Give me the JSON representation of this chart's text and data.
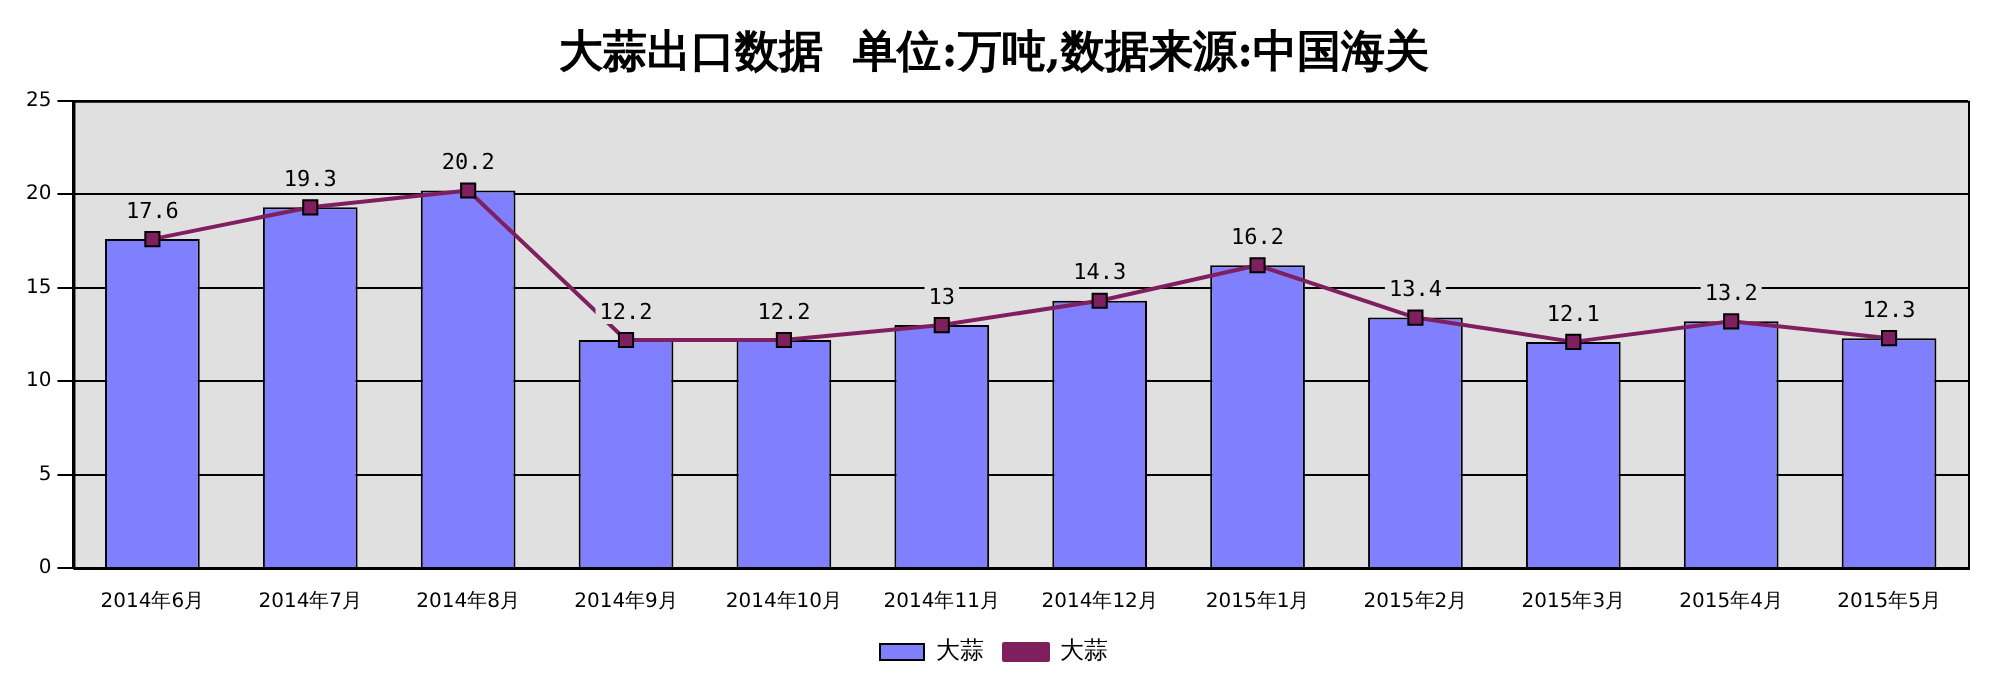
{
  "chart_data": {
    "type": "bar",
    "title": "大蒜出口数据  单位:万吨,数据来源:中国海关",
    "categories": [
      "2014年6月",
      "2014年7月",
      "2014年8月",
      "2014年9月",
      "2014年10月",
      "2014年11月",
      "2014年12月",
      "2015年1月",
      "2015年2月",
      "2015年3月",
      "2015年4月",
      "2015年5月"
    ],
    "series": [
      {
        "name": "大蒜",
        "color": "#8080ff",
        "values": [
          17.6,
          19.3,
          20.2,
          12.2,
          12.2,
          13,
          14.3,
          16.2,
          13.4,
          12.1,
          13.2,
          12.3
        ]
      },
      {
        "name": "大蒜",
        "type": "line",
        "color": "#7f1f5f",
        "marker": "square",
        "values": [
          17.6,
          19.3,
          20.2,
          12.2,
          12.2,
          13,
          14.3,
          16.2,
          13.4,
          12.1,
          13.2,
          12.3
        ],
        "value_labels": [
          "17.6",
          "19.3",
          "20.2",
          "12.2",
          "12.2",
          "13",
          "14.3",
          "16.2",
          "13.4",
          "12.1",
          "13.2",
          "12.3"
        ]
      }
    ],
    "ylim": [
      0,
      25
    ],
    "yticks": [
      0,
      5,
      10,
      15,
      20,
      25
    ],
    "grid": "y",
    "legend": "bottom"
  }
}
